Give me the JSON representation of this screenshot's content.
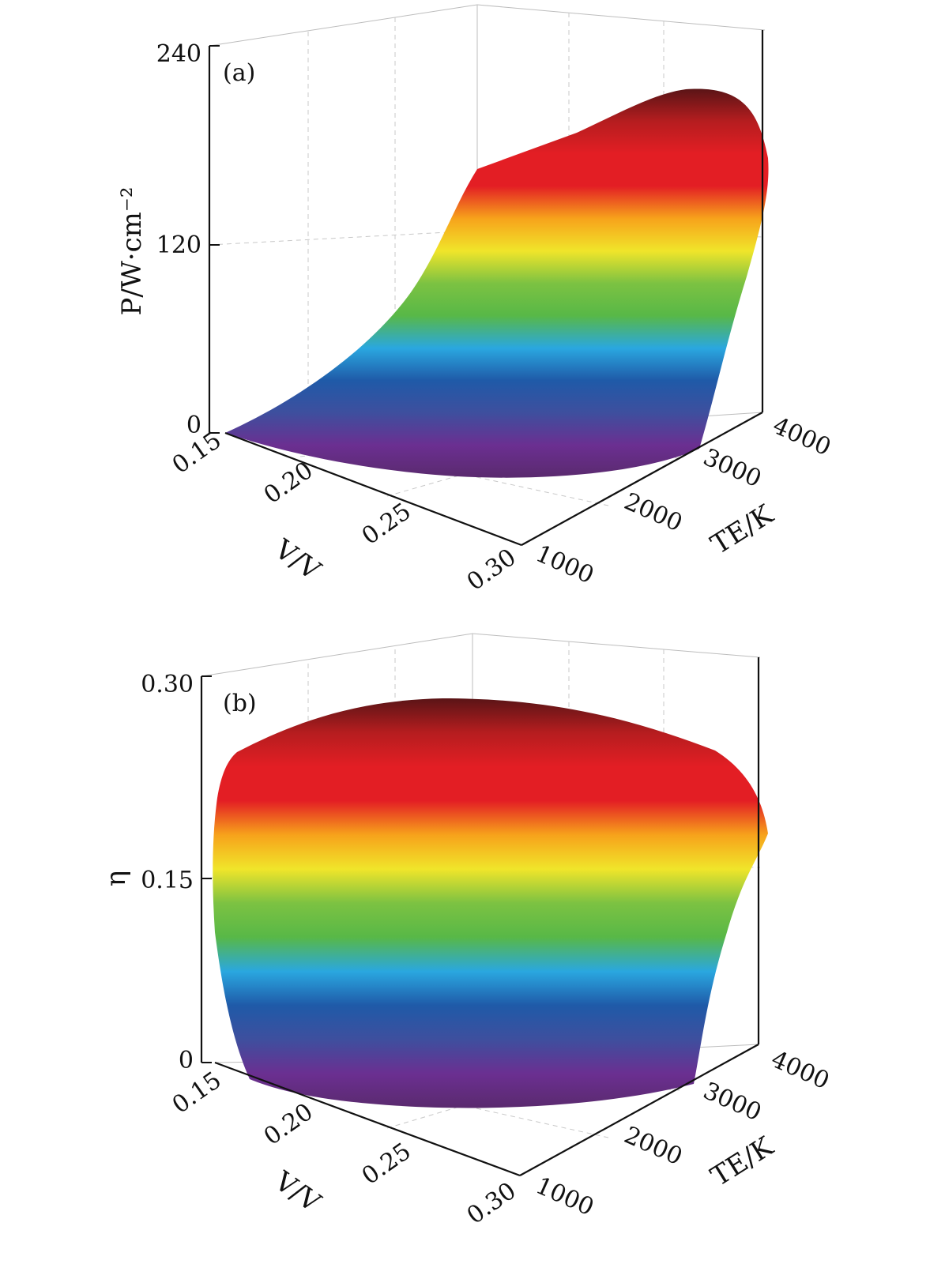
{
  "chart_data": [
    {
      "type": "surface",
      "panel_label": "(a)",
      "zlabel": "P/W·cm⁻²",
      "xlabel": "V/V",
      "ylabel": "TE/K",
      "x_ticks": [
        "0.15",
        "0.20",
        "0.25",
        "0.30"
      ],
      "y_ticks": [
        "1000",
        "2000",
        "3000",
        "4000"
      ],
      "z_ticks": [
        "0",
        "120",
        "240"
      ],
      "xlim": [
        0.15,
        0.3
      ],
      "ylim": [
        1000,
        4000
      ],
      "zlim": [
        0,
        240
      ],
      "colormap": [
        "#5a2a6e",
        "#6b2f91",
        "#3e4f9e",
        "#1f5aa8",
        "#2aa7e0",
        "#58b847",
        "#7cc242",
        "#f0e52a",
        "#f7a21b",
        "#e31e24",
        "#e31e24",
        "#b51d1f",
        "#5a1416"
      ],
      "surface_peak": 205
    },
    {
      "type": "surface",
      "panel_label": "(b)",
      "zlabel": "η",
      "xlabel": "V/V",
      "ylabel": "TE/K",
      "x_ticks": [
        "0.15",
        "0.20",
        "0.25",
        "0.30"
      ],
      "y_ticks": [
        "1000",
        "2000",
        "3000",
        "4000"
      ],
      "z_ticks": [
        "0",
        "0.15",
        "0.30"
      ],
      "xlim": [
        0.15,
        0.3
      ],
      "ylim": [
        1000,
        4000
      ],
      "zlim": [
        0,
        0.3
      ],
      "colormap": [
        "#5a2a6e",
        "#6b2f91",
        "#3e4f9e",
        "#1f5aa8",
        "#2aa7e0",
        "#58b847",
        "#7cc242",
        "#f0e52a",
        "#f7a21b",
        "#e31e24",
        "#e31e24",
        "#b51d1f",
        "#5a1416"
      ],
      "surface_peak": 0.27
    }
  ]
}
